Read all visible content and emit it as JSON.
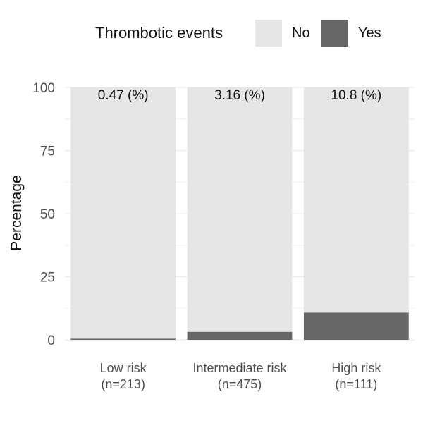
{
  "chart_data": {
    "type": "bar",
    "stacked": true,
    "categories": [
      "Low risk\n(n=213)",
      "Intermediate risk\n(n=475)",
      "High risk\n(n=111)"
    ],
    "series": [
      {
        "name": "No",
        "values": [
          99.53,
          96.84,
          89.2
        ]
      },
      {
        "name": "Yes",
        "values": [
          0.47,
          3.16,
          10.8
        ]
      }
    ],
    "bar_labels": [
      "0.47 (%)",
      "3.16 (%)",
      "10.8 (%)"
    ],
    "ylabel": "Percentage",
    "xlabel": "",
    "ylim": [
      0,
      100
    ],
    "yticks": [
      "0",
      "25",
      "50",
      "75",
      "100"
    ],
    "grid": true,
    "legend": {
      "title": "Thrombotic events",
      "position": "top"
    }
  },
  "colors": {
    "No": "#e5e5e5",
    "Yes": "#666666",
    "grid": "#ececec",
    "tick_text": "#4d4d4d"
  }
}
